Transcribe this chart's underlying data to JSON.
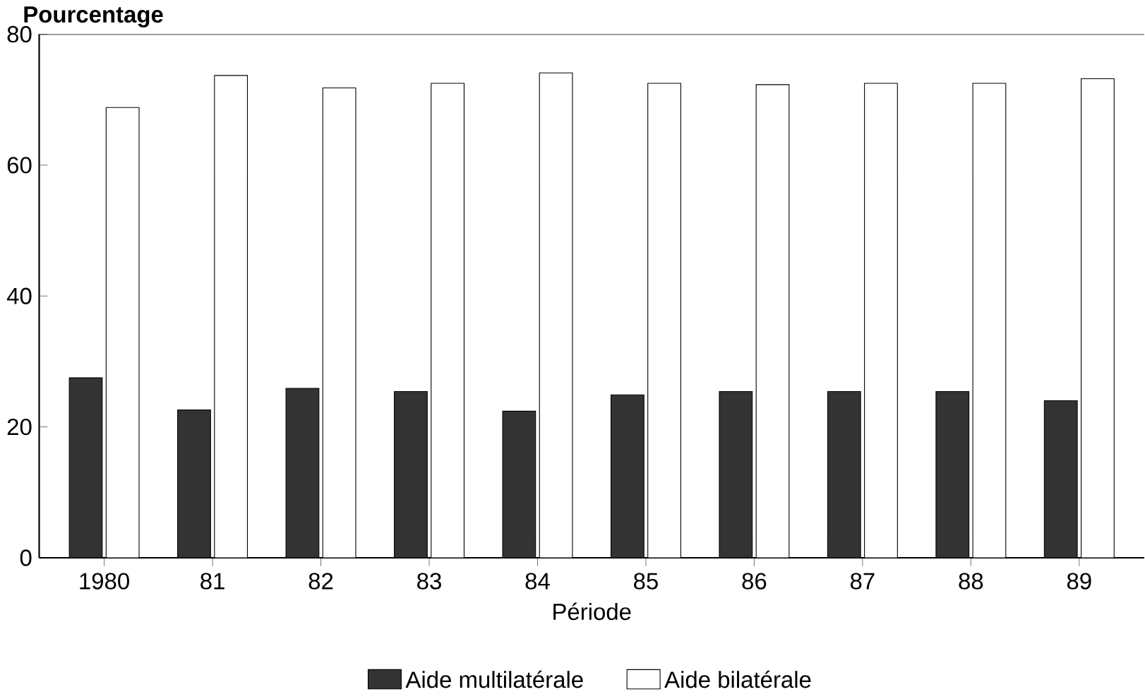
{
  "chart_data": {
    "type": "bar",
    "ylabel": "Pourcentage",
    "xlabel": "Période",
    "categories": [
      "1980",
      "81",
      "82",
      "83",
      "84",
      "85",
      "86",
      "87",
      "88",
      "89"
    ],
    "series": [
      {
        "name": "Aide multilatérale",
        "color": "#333333",
        "values": [
          27.5,
          22.6,
          25.9,
          25.4,
          22.4,
          24.9,
          25.4,
          25.4,
          25.4,
          24.0
        ]
      },
      {
        "name": "Aide bilatérale",
        "color": "#ffffff",
        "values": [
          68.8,
          73.7,
          71.8,
          72.5,
          74.1,
          72.5,
          72.3,
          72.5,
          72.5,
          73.2
        ]
      }
    ],
    "ylim": [
      0,
      80
    ],
    "yticks": [
      0,
      20,
      40,
      60,
      80
    ],
    "grid": false,
    "legend": "bottom"
  }
}
